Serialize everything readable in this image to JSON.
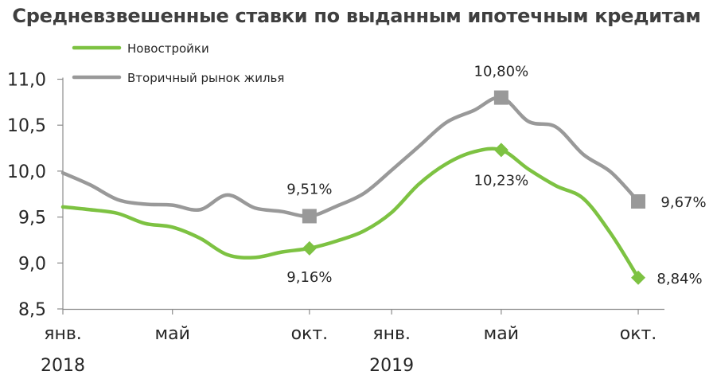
{
  "chart_data": {
    "type": "line",
    "title": "Средневзвешенные ставки по выданным ипотечным кредитам",
    "xlabel": "",
    "ylabel": "",
    "ylim": [
      8.5,
      11.0
    ],
    "y_ticks": [
      "11,0",
      "10,5",
      "10,0",
      "9,5",
      "9,0",
      "8,5"
    ],
    "x_ticks": [
      {
        "month": 1,
        "label": "янв."
      },
      {
        "month": 5,
        "label": "май"
      },
      {
        "month": 10,
        "label": "окт."
      },
      {
        "month": 13,
        "label": "янв."
      },
      {
        "month": 17,
        "label": "май"
      },
      {
        "month": 22,
        "label": "окт."
      }
    ],
    "year_labels": [
      {
        "month": 1,
        "label": "2018"
      },
      {
        "month": 13,
        "label": "2019"
      }
    ],
    "grid": false,
    "legend_position": "top-left",
    "series": [
      {
        "name": "Новостройки",
        "color": "#7dc242",
        "marker": "diamond",
        "x": [
          1,
          2,
          3,
          4,
          5,
          6,
          7,
          8,
          9,
          10,
          11,
          12,
          13,
          14,
          15,
          16,
          17,
          18,
          19,
          20,
          21,
          22
        ],
        "values": [
          9.61,
          9.58,
          9.54,
          9.43,
          9.39,
          9.27,
          9.09,
          9.06,
          9.12,
          9.16,
          9.24,
          9.35,
          9.55,
          9.86,
          10.08,
          10.21,
          10.23,
          10.02,
          9.84,
          9.7,
          9.32,
          8.84
        ],
        "labeled_points": [
          {
            "month": 10,
            "value": 9.16,
            "label": "9,16%"
          },
          {
            "month": 17,
            "value": 10.23,
            "label": "10,23%"
          },
          {
            "month": 22,
            "value": 8.84,
            "label": "8,84%"
          }
        ]
      },
      {
        "name": "Вторичный рынок жилья",
        "color": "#999999",
        "marker": "square",
        "x": [
          1,
          2,
          3,
          4,
          5,
          6,
          7,
          8,
          9,
          10,
          11,
          12,
          13,
          14,
          15,
          16,
          17,
          18,
          19,
          20,
          21,
          22
        ],
        "values": [
          9.98,
          9.85,
          9.69,
          9.64,
          9.63,
          9.58,
          9.74,
          9.6,
          9.56,
          9.51,
          9.62,
          9.76,
          10.01,
          10.27,
          10.53,
          10.66,
          10.8,
          10.54,
          10.48,
          10.18,
          9.99,
          9.67
        ],
        "labeled_points": [
          {
            "month": 10,
            "value": 9.51,
            "label": "9,51%"
          },
          {
            "month": 17,
            "value": 10.8,
            "label": "10,80%"
          },
          {
            "month": 22,
            "value": 9.67,
            "label": "9,67%"
          }
        ]
      }
    ]
  }
}
